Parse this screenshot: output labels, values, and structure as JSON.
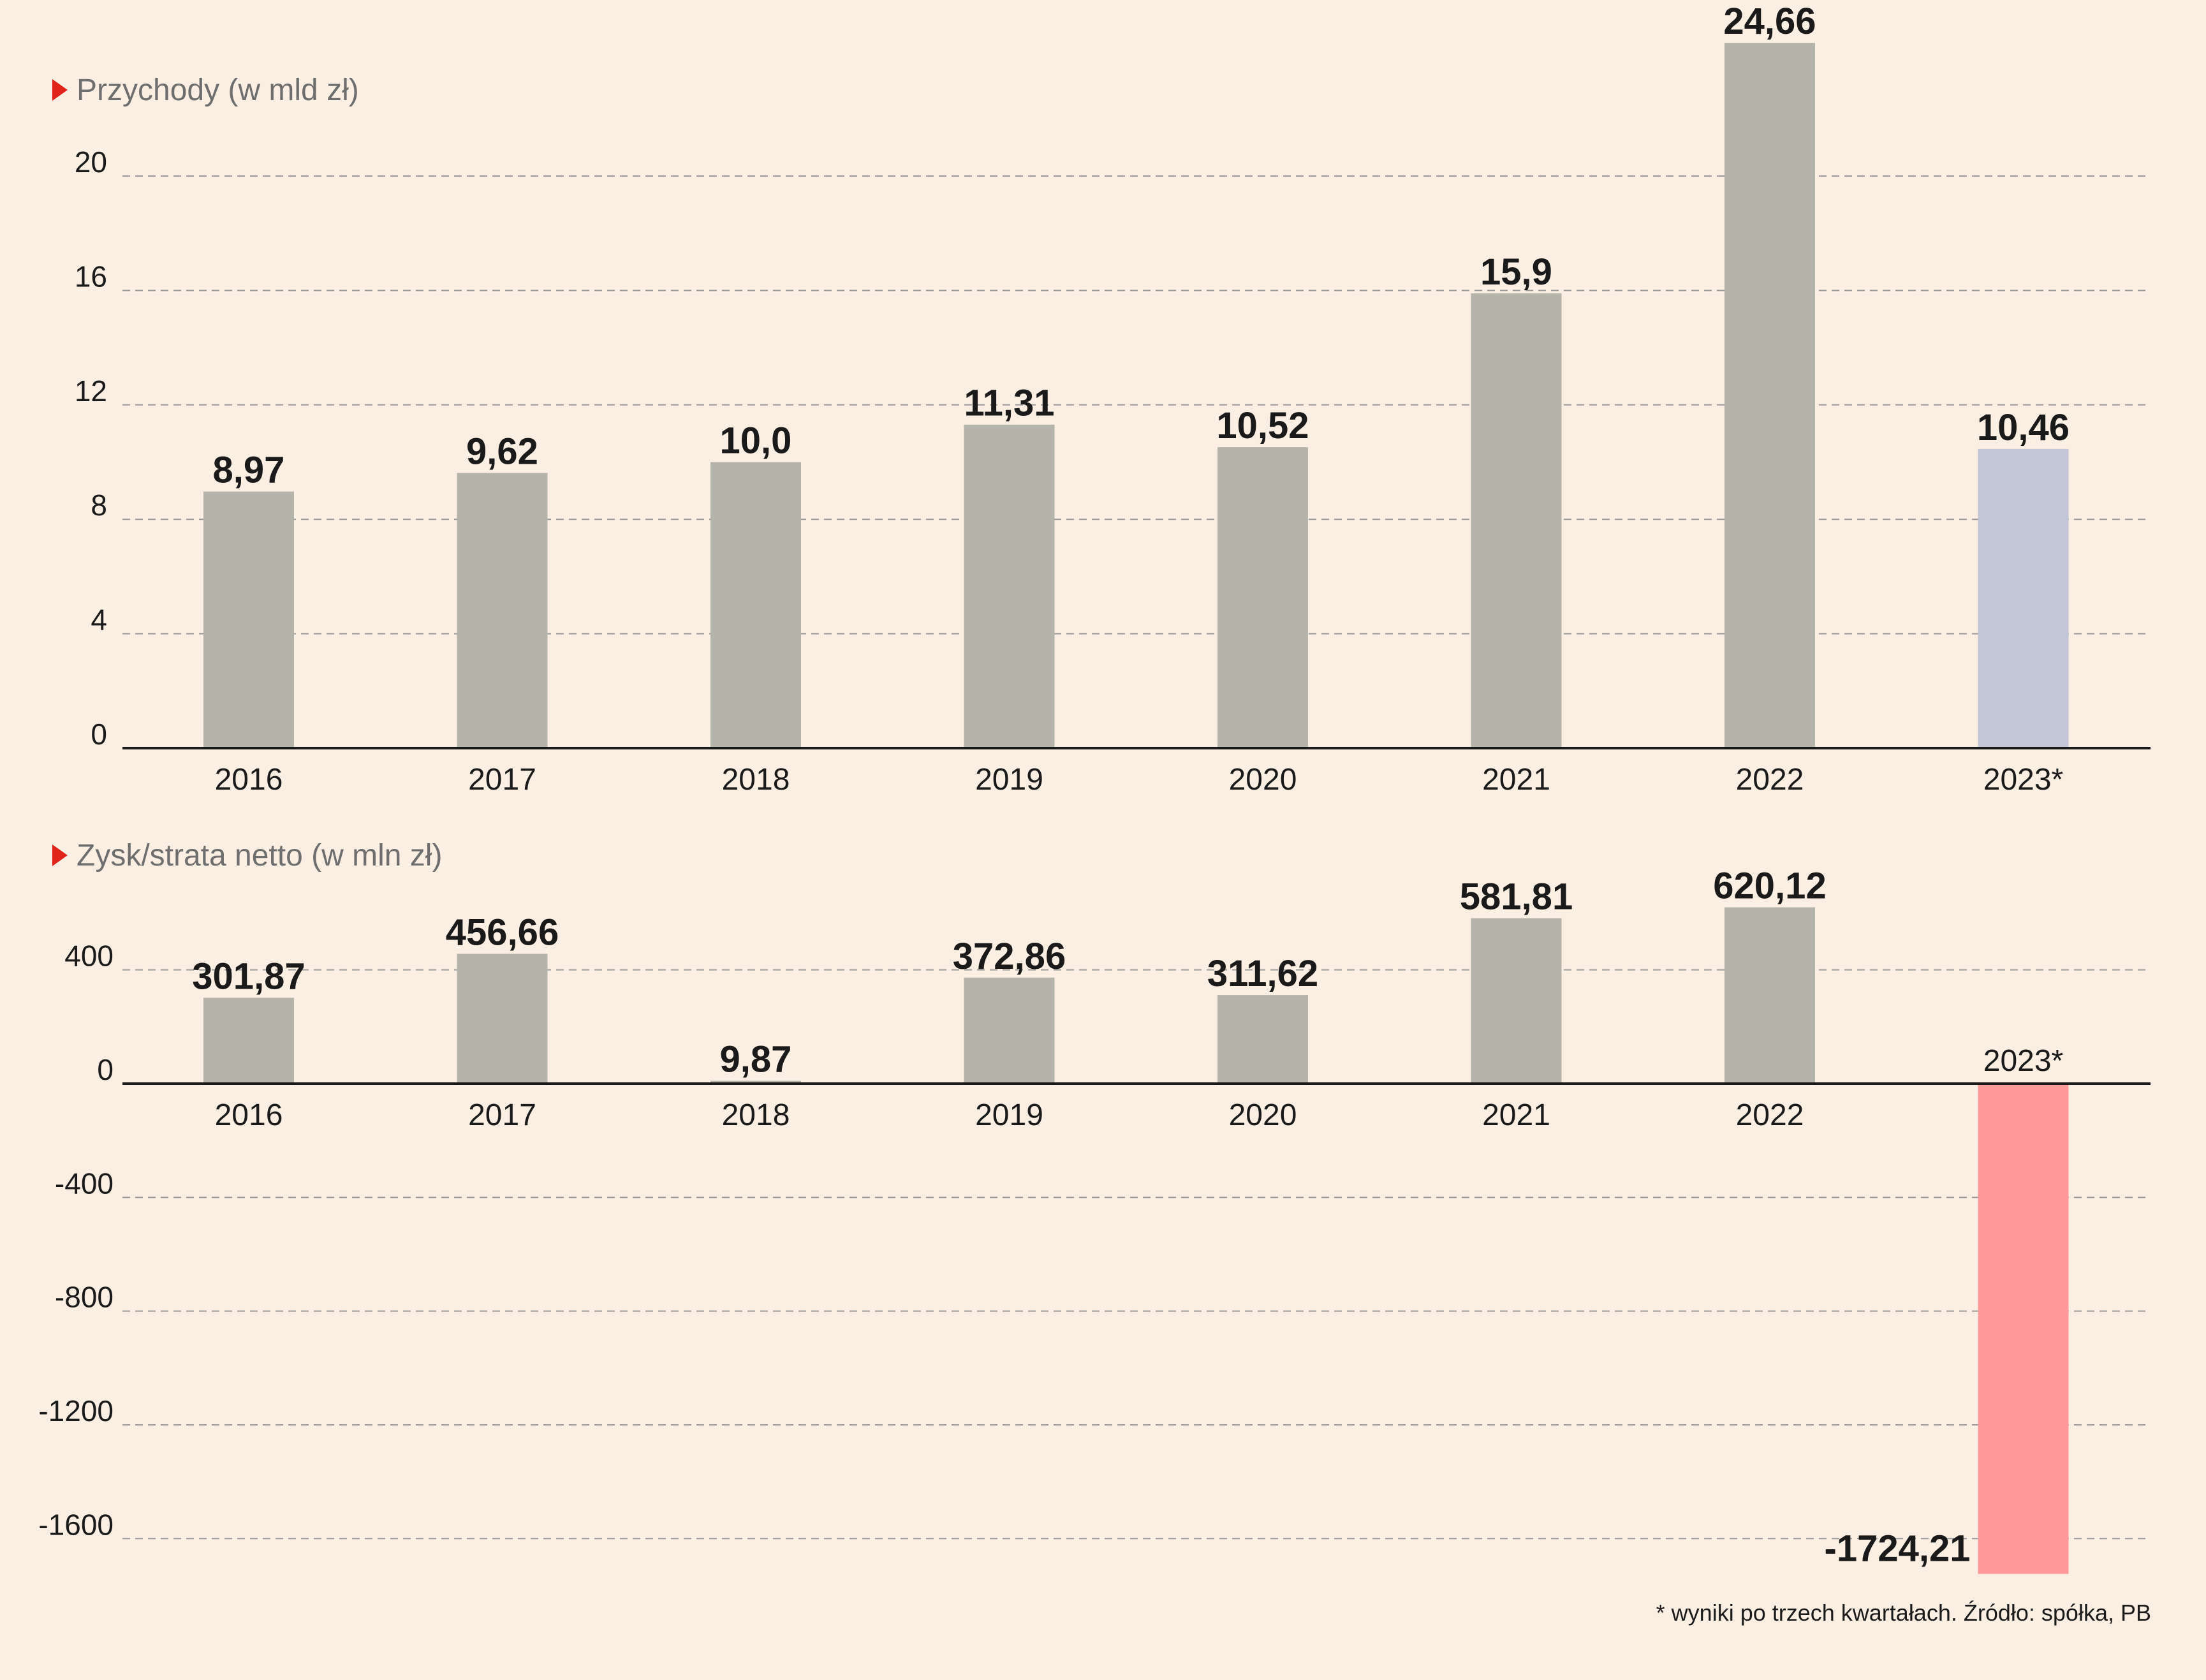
{
  "colors": {
    "background": "#fbeee2",
    "bar": "#b4b4ab",
    "bar_estimate": "#c2c6d6",
    "bar_negative": "#fe9a9a",
    "marker": "#e2231a",
    "axis": "#1a1a1a",
    "grid": "#9a9a9a",
    "title_text": "#6e6e6e"
  },
  "chart_data": [
    {
      "type": "bar",
      "title": "Przychody (w mld zł)",
      "categories": [
        "2016",
        "2017",
        "2018",
        "2019",
        "2020",
        "2021",
        "2022",
        "2023*"
      ],
      "values": [
        8.97,
        9.62,
        10.0,
        11.31,
        10.52,
        15.9,
        24.66,
        10.46
      ],
      "value_labels": [
        "8,97",
        "9,62",
        "10,0",
        "11,31",
        "10,52",
        "15,9",
        "24,66",
        "10,46"
      ],
      "yticks": [
        "0",
        "4",
        "8",
        "12",
        "16",
        "20"
      ],
      "ytick_values": [
        0,
        4,
        8,
        12,
        16,
        20
      ],
      "ylim": [
        0,
        24.66
      ],
      "grid": true,
      "estimate_index": 7
    },
    {
      "type": "bar",
      "title": "Zysk/strata netto (w mln zł)",
      "categories": [
        "2016",
        "2017",
        "2018",
        "2019",
        "2020",
        "2021",
        "2022",
        "2023*"
      ],
      "values": [
        301.87,
        456.66,
        9.87,
        372.86,
        311.62,
        581.81,
        620.12,
        -1724.21
      ],
      "value_labels": [
        "301,87",
        "456,66",
        "9,87",
        "372,86",
        "311,62",
        "581,81",
        "620,12",
        "-1724,21"
      ],
      "yticks": [
        "400",
        "0",
        "-400",
        "-800",
        "-1200",
        "-1600"
      ],
      "ytick_values": [
        400,
        0,
        -400,
        -800,
        -1200,
        -1600
      ],
      "ylim": [
        -1724.21,
        620.12
      ],
      "grid": true
    }
  ],
  "footnote": "* wyniki po trzech kwartałach. Źródło: spółka, PB"
}
